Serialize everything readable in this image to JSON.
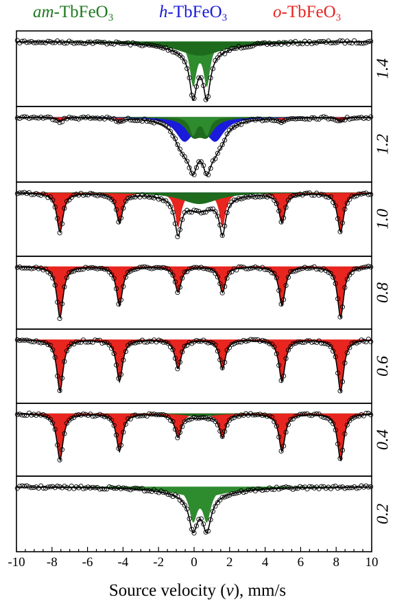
{
  "legend": {
    "am": {
      "prefix": "am",
      "rest": "-TbFeO",
      "sub": "3",
      "color": "#1f7a1f"
    },
    "h": {
      "prefix": "h",
      "rest": "-TbFeO",
      "sub": "3",
      "color": "#1a1adb"
    },
    "o": {
      "prefix": "o",
      "rest": "-TbFeO",
      "sub": "3",
      "color": "#e8251f"
    }
  },
  "xaxis": {
    "label_pre": "Source velocity (",
    "label_var": "v",
    "label_post": "), mm/s"
  },
  "chart_data": {
    "type": "area",
    "title": "",
    "xlabel": "Source velocity (v), mm/s",
    "ylabel": "",
    "xlim": [
      -10,
      10
    ],
    "x_ticks": [
      "-10",
      "-8",
      "-6",
      "-4",
      "-2",
      "0",
      "2",
      "4",
      "6",
      "8",
      "10"
    ],
    "x_tick_values": [
      -10,
      -8,
      -6,
      -4,
      -2,
      0,
      2,
      4,
      6,
      8,
      10
    ],
    "grid": false,
    "legend_position": "top",
    "panels": [
      {
        "label": "1.4",
        "components": [
          {
            "phase": "am-TbFeO3",
            "color": "#2e8b2e",
            "lines": [
              {
                "x": -0.05,
                "depth": 0.72,
                "width": 0.45
              },
              {
                "x": 0.72,
                "depth": 0.72,
                "width": 0.45
              }
            ]
          },
          {
            "phase": "am-TbFeO3",
            "color": "#1e6b1e",
            "lines": [
              {
                "x": 0.35,
                "depth": 0.24,
                "width": 3.2
              }
            ]
          }
        ]
      },
      {
        "label": "1.2",
        "components": [
          {
            "phase": "o-TbFeO3",
            "color": "#e8251f",
            "lines": [
              {
                "x": -7.55,
                "depth": 0.07,
                "width": 0.4
              },
              {
                "x": -4.2,
                "depth": 0.07,
                "width": 0.4
              },
              {
                "x": -0.9,
                "depth": 0.07,
                "width": 0.4
              },
              {
                "x": 1.6,
                "depth": 0.07,
                "width": 0.4
              },
              {
                "x": 4.95,
                "depth": 0.07,
                "width": 0.4
              },
              {
                "x": 8.25,
                "depth": 0.07,
                "width": 0.4
              }
            ]
          },
          {
            "phase": "h-TbFeO3",
            "color": "#1a1adb",
            "lines": [
              {
                "x": -0.55,
                "depth": 0.38,
                "width": 1.2
              },
              {
                "x": 1.2,
                "depth": 0.38,
                "width": 1.2
              }
            ]
          },
          {
            "phase": "am-TbFeO3",
            "color": "#1e6b1e",
            "lines": [
              {
                "x": -0.05,
                "depth": 0.28,
                "width": 1.0
              },
              {
                "x": 0.72,
                "depth": 0.28,
                "width": 1.0
              }
            ]
          },
          {
            "phase": "am-TbFeO3",
            "color": "#2e8b2e",
            "lines": [
              {
                "x": -0.05,
                "depth": 0.3,
                "width": 0.45
              },
              {
                "x": 0.72,
                "depth": 0.3,
                "width": 0.45
              }
            ]
          }
        ]
      },
      {
        "label": "1.0",
        "components": [
          {
            "phase": "o-TbFeO3",
            "color": "#e8251f",
            "lines": [
              {
                "x": -7.55,
                "depth": 0.68,
                "width": 0.42
              },
              {
                "x": -4.2,
                "depth": 0.5,
                "width": 0.42
              },
              {
                "x": -0.9,
                "depth": 0.6,
                "width": 0.42
              },
              {
                "x": 1.6,
                "depth": 0.6,
                "width": 0.42
              },
              {
                "x": 4.95,
                "depth": 0.5,
                "width": 0.42
              },
              {
                "x": 8.25,
                "depth": 0.68,
                "width": 0.42
              }
            ]
          },
          {
            "phase": "h-TbFeO3",
            "color": "#1a1adb",
            "lines": [
              {
                "x": 0.3,
                "depth": 0.1,
                "width": 2.2
              }
            ]
          },
          {
            "phase": "am-TbFeO3",
            "color": "#1e6b1e",
            "lines": [
              {
                "x": 0.3,
                "depth": 0.2,
                "width": 2.6
              }
            ]
          }
        ]
      },
      {
        "label": "0.8",
        "components": [
          {
            "phase": "o-TbFeO3",
            "color": "#e8251f",
            "lines": [
              {
                "x": -7.55,
                "depth": 0.9,
                "width": 0.42
              },
              {
                "x": -4.2,
                "depth": 0.68,
                "width": 0.42
              },
              {
                "x": -0.9,
                "depth": 0.45,
                "width": 0.42
              },
              {
                "x": 1.6,
                "depth": 0.45,
                "width": 0.42
              },
              {
                "x": 4.95,
                "depth": 0.68,
                "width": 0.42
              },
              {
                "x": 8.25,
                "depth": 0.9,
                "width": 0.42
              }
            ]
          }
        ]
      },
      {
        "label": "0.6",
        "components": [
          {
            "phase": "o-TbFeO3",
            "color": "#e8251f",
            "lines": [
              {
                "x": -7.55,
                "depth": 0.9,
                "width": 0.42
              },
              {
                "x": -4.2,
                "depth": 0.72,
                "width": 0.42
              },
              {
                "x": -0.9,
                "depth": 0.5,
                "width": 0.42
              },
              {
                "x": 1.6,
                "depth": 0.5,
                "width": 0.42
              },
              {
                "x": 4.95,
                "depth": 0.72,
                "width": 0.42
              },
              {
                "x": 8.25,
                "depth": 0.9,
                "width": 0.42
              }
            ]
          }
        ]
      },
      {
        "label": "0.4",
        "components": [
          {
            "phase": "o-TbFeO3",
            "color": "#e8251f",
            "lines": [
              {
                "x": -7.55,
                "depth": 0.82,
                "width": 0.42
              },
              {
                "x": -4.2,
                "depth": 0.66,
                "width": 0.42
              },
              {
                "x": -0.9,
                "depth": 0.4,
                "width": 0.42
              },
              {
                "x": 1.6,
                "depth": 0.4,
                "width": 0.42
              },
              {
                "x": 4.95,
                "depth": 0.66,
                "width": 0.42
              },
              {
                "x": 8.25,
                "depth": 0.82,
                "width": 0.42
              }
            ]
          },
          {
            "phase": "am-TbFeO3",
            "color": "#1e6b1e",
            "lines": [
              {
                "x": 0.35,
                "depth": 0.06,
                "width": 1.8
              }
            ]
          }
        ]
      },
      {
        "label": "0.2",
        "components": [
          {
            "phase": "am-TbFeO3",
            "color": "#2e8b2e",
            "lines": [
              {
                "x": -0.05,
                "depth": 0.55,
                "width": 0.55
              },
              {
                "x": 0.72,
                "depth": 0.55,
                "width": 0.55
              }
            ]
          },
          {
            "phase": "am-TbFeO3",
            "color": "#2e8b2e",
            "lines": [
              {
                "x": 0.35,
                "depth": 0.18,
                "width": 3.6
              }
            ]
          }
        ]
      }
    ]
  }
}
